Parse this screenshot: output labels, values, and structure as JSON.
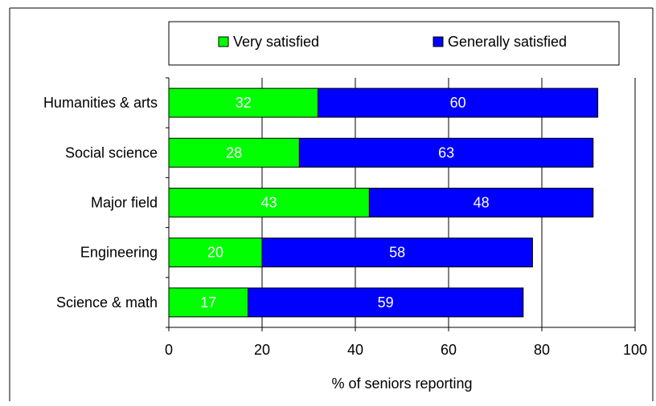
{
  "chart_data": {
    "type": "bar",
    "orientation": "horizontal",
    "stacked": true,
    "title": "",
    "xlabel": "% of seniors reporting",
    "ylabel": "",
    "xlim": [
      0,
      100
    ],
    "xticks": [
      "0",
      "20",
      "40",
      "60",
      "80",
      "100"
    ],
    "grid": true,
    "legend_position": "top",
    "categories": [
      "Humanities & arts",
      "Social science",
      "Major field",
      "Engineering",
      "Science & math"
    ],
    "series": [
      {
        "name": "Very satisfied",
        "color": "#00ff00",
        "values": [
          32,
          28,
          43,
          20,
          17
        ]
      },
      {
        "name": "Generally satisfied",
        "color": "#0000ff",
        "values": [
          60,
          63,
          48,
          58,
          59
        ]
      }
    ]
  }
}
